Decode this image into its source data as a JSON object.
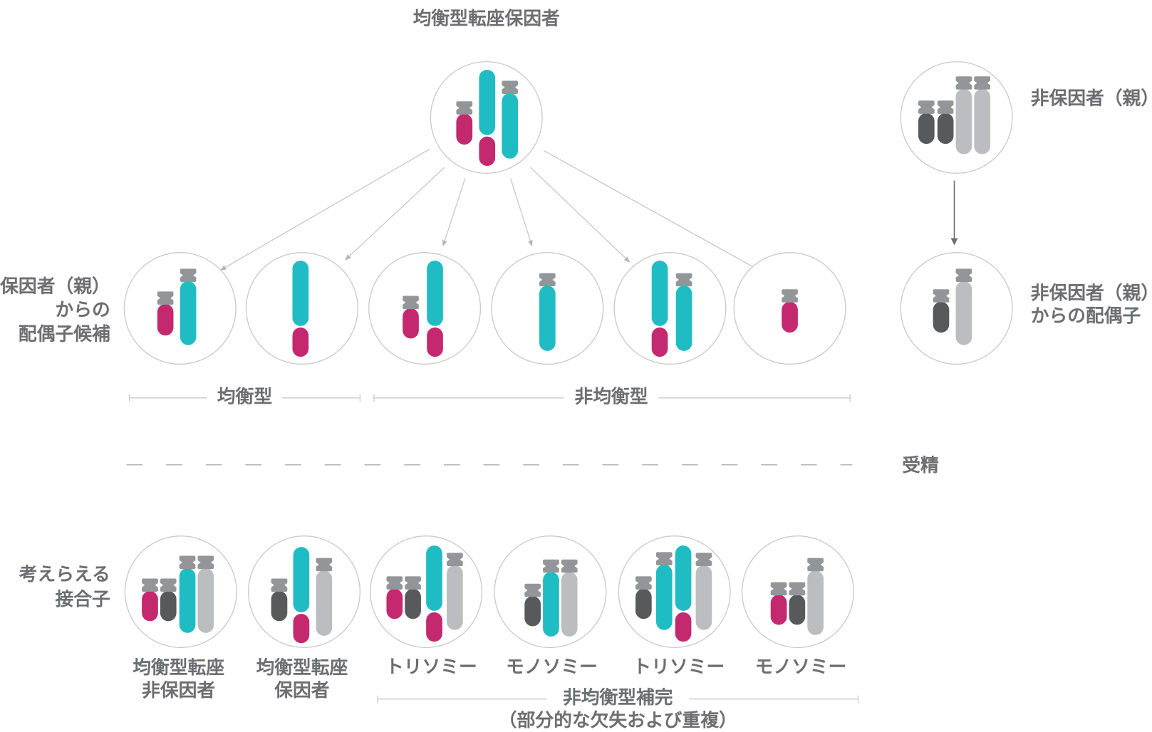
{
  "title": "均衡型転座保因者",
  "gamete_label": [
    "保因者（親）",
    "からの",
    "配偶子候補"
  ],
  "balanced_label": "均衡型",
  "unbalanced_label": "非均衡型",
  "noncarrier_parent": "非保因者（親）",
  "noncarrier_gamete_label": [
    "非保因者（親）",
    "からの配偶子"
  ],
  "fertilization": "受精",
  "zygote_label": [
    "考えらえる",
    "接合子"
  ],
  "zygotes": [
    [
      "均衡型転座",
      "非保因者"
    ],
    [
      "均衡型転座",
      "保因者"
    ],
    [
      "トリソミー"
    ],
    [
      "モノソミー"
    ],
    [
      "トリソミー"
    ],
    [
      "モノソミー"
    ]
  ],
  "unbalanced_complement": [
    "非均衡型補完",
    "（部分的な欠失および重複）"
  ]
}
